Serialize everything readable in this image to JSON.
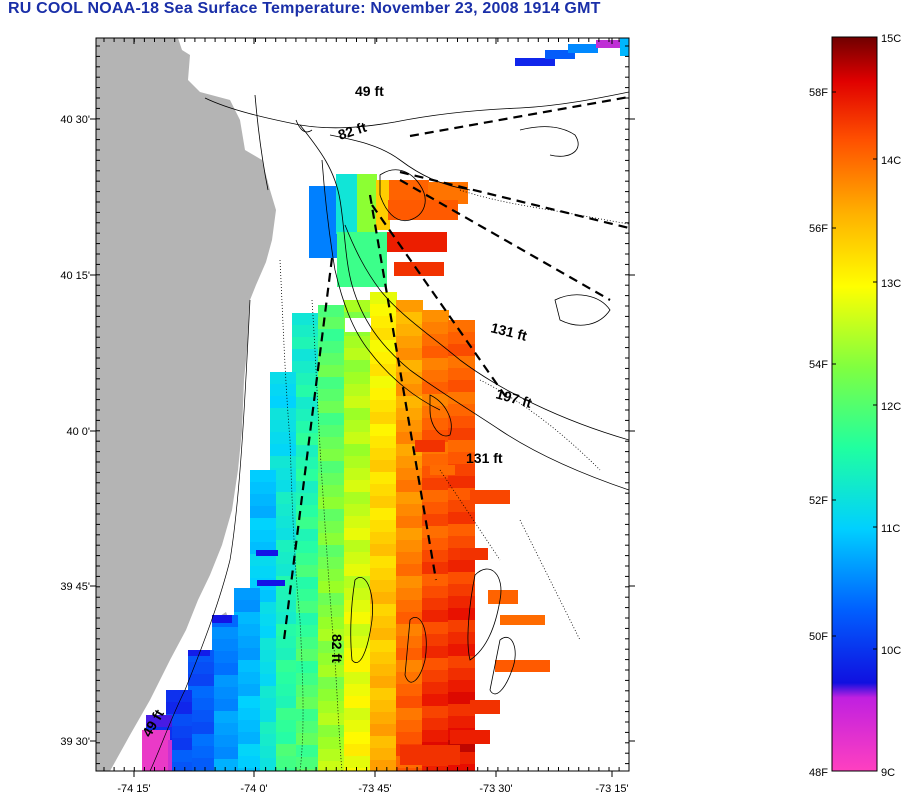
{
  "title": "RU COOL  NOAA-18  Sea Surface Temperature:  November 23, 2008 1914 GMT",
  "lat_labels": [
    "40 30'",
    "40 15'",
    "40 0'",
    "39 45'",
    "39 30'"
  ],
  "lon_labels": [
    "-74 15'",
    "-74 0'",
    "-73 45'",
    "-73 30'",
    "-73 15'"
  ],
  "contour_labels": [
    "49 ft",
    "82 ft",
    "131 ft",
    "197 ft",
    "131 ft",
    "82 ft",
    "49 ft"
  ],
  "colorbar": {
    "celsius_labels": [
      "15C",
      "14C",
      "13C",
      "12C",
      "11C",
      "10C",
      "9C"
    ],
    "fahrenheit_labels": [
      "58F",
      "56F",
      "54F",
      "52F",
      "50F",
      "48F"
    ]
  },
  "colors": {
    "title": "#1a2fa8",
    "land": "#b4b4b4"
  }
}
